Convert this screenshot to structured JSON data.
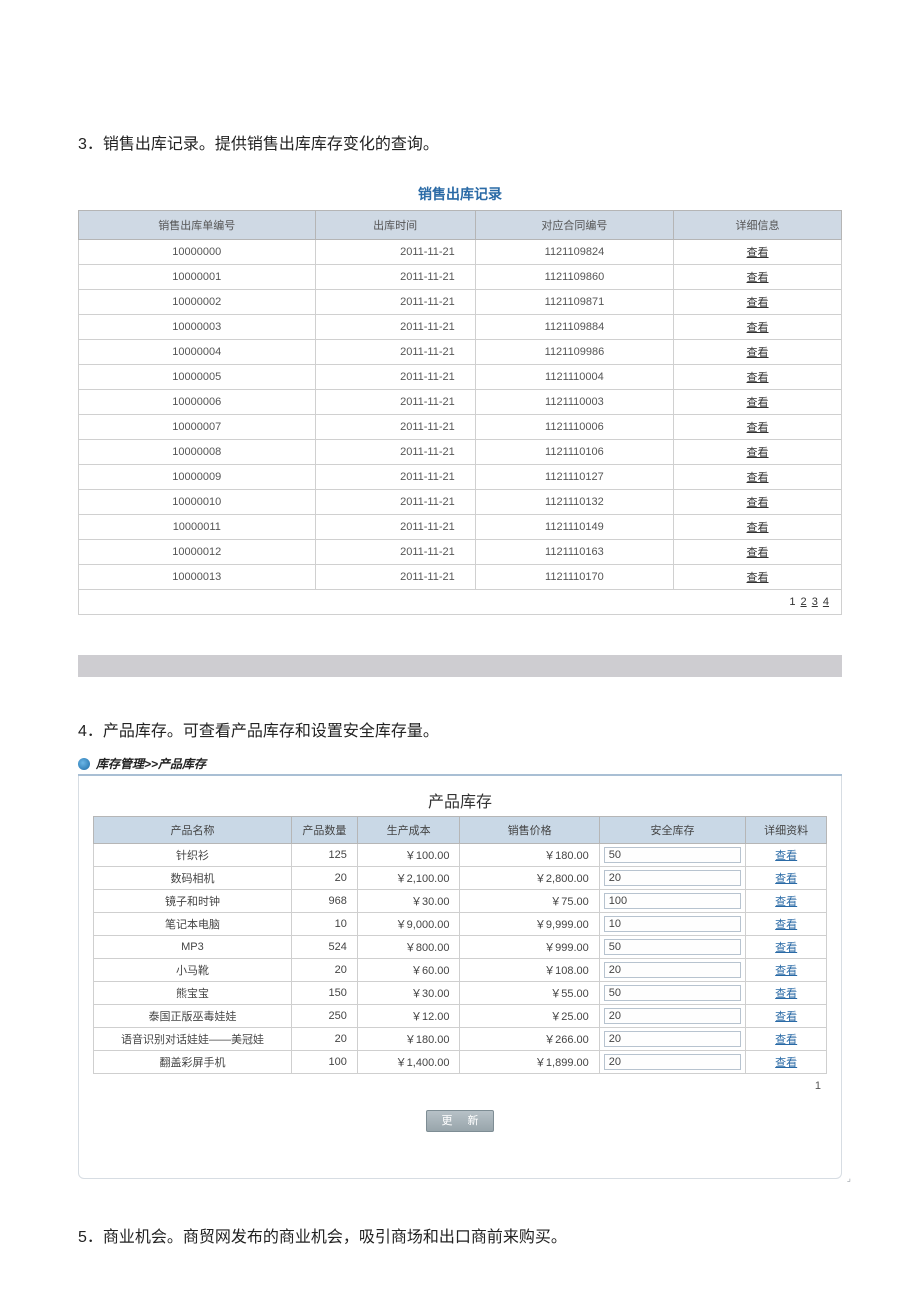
{
  "section3": {
    "heading": "3．销售出库记录。提供销售出库库存变化的查询。",
    "tableTitle": "销售出库记录",
    "columns": [
      "销售出库单编号",
      "出库时间",
      "对应合同编号",
      "详细信息"
    ],
    "viewLabel": "查看",
    "rows": [
      {
        "id": "10000000",
        "time": "2011-11-21",
        "contract": "1121109824"
      },
      {
        "id": "10000001",
        "time": "2011-11-21",
        "contract": "1121109860"
      },
      {
        "id": "10000002",
        "time": "2011-11-21",
        "contract": "1121109871"
      },
      {
        "id": "10000003",
        "time": "2011-11-21",
        "contract": "1121109884"
      },
      {
        "id": "10000004",
        "time": "2011-11-21",
        "contract": "1121109986"
      },
      {
        "id": "10000005",
        "time": "2011-11-21",
        "contract": "1121110004"
      },
      {
        "id": "10000006",
        "time": "2011-11-21",
        "contract": "1121110003"
      },
      {
        "id": "10000007",
        "time": "2011-11-21",
        "contract": "1121110006"
      },
      {
        "id": "10000008",
        "time": "2011-11-21",
        "contract": "1121110106"
      },
      {
        "id": "10000009",
        "time": "2011-11-21",
        "contract": "1121110127"
      },
      {
        "id": "10000010",
        "time": "2011-11-21",
        "contract": "1121110132"
      },
      {
        "id": "10000011",
        "time": "2011-11-21",
        "contract": "1121110149"
      },
      {
        "id": "10000012",
        "time": "2011-11-21",
        "contract": "1121110163"
      },
      {
        "id": "10000013",
        "time": "2011-11-21",
        "contract": "1121110170"
      }
    ],
    "pager": {
      "current": "1",
      "links": [
        "2",
        "3",
        "4"
      ]
    }
  },
  "section4": {
    "heading": "4．产品库存。可查看产品库存和设置安全库存量。",
    "breadcrumb": "库存管理>>产品库存",
    "tableTitle": "产品库存",
    "columns": [
      "产品名称",
      "产品数量",
      "生产成本",
      "销售价格",
      "安全库存",
      "详细资料"
    ],
    "viewLabel": "查看",
    "rows": [
      {
        "name": "针织衫",
        "qty": "125",
        "cost": "￥100.00",
        "price": "￥180.00",
        "safe": "50"
      },
      {
        "name": "数码相机",
        "qty": "20",
        "cost": "￥2,100.00",
        "price": "￥2,800.00",
        "safe": "20"
      },
      {
        "name": "镜子和时钟",
        "qty": "968",
        "cost": "￥30.00",
        "price": "￥75.00",
        "safe": "100"
      },
      {
        "name": "笔记本电脑",
        "qty": "10",
        "cost": "￥9,000.00",
        "price": "￥9,999.00",
        "safe": "10"
      },
      {
        "name": "MP3",
        "qty": "524",
        "cost": "￥800.00",
        "price": "￥999.00",
        "safe": "50"
      },
      {
        "name": "小马靴",
        "qty": "20",
        "cost": "￥60.00",
        "price": "￥108.00",
        "safe": "20"
      },
      {
        "name": "熊宝宝",
        "qty": "150",
        "cost": "￥30.00",
        "price": "￥55.00",
        "safe": "50"
      },
      {
        "name": "泰国正版巫毒娃娃",
        "qty": "250",
        "cost": "￥12.00",
        "price": "￥25.00",
        "safe": "20"
      },
      {
        "name": "语音识别对话娃娃——美冠娃",
        "qty": "20",
        "cost": "￥180.00",
        "price": "￥266.00",
        "safe": "20"
      },
      {
        "name": "翻盖彩屏手机",
        "qty": "100",
        "cost": "￥1,400.00",
        "price": "￥1,899.00",
        "safe": "20"
      }
    ],
    "pager": "1",
    "updateLabel": "更 新"
  },
  "section5": {
    "heading": "5．商业机会。商贸网发布的商业机会，吸引商场和出口商前来购买。"
  },
  "colors": {
    "header_bg_t1": "#cfd9e4",
    "header_bg_t2": "#c9d8e6",
    "title_color": "#2a6aa6",
    "border": "#d0d0d0"
  }
}
